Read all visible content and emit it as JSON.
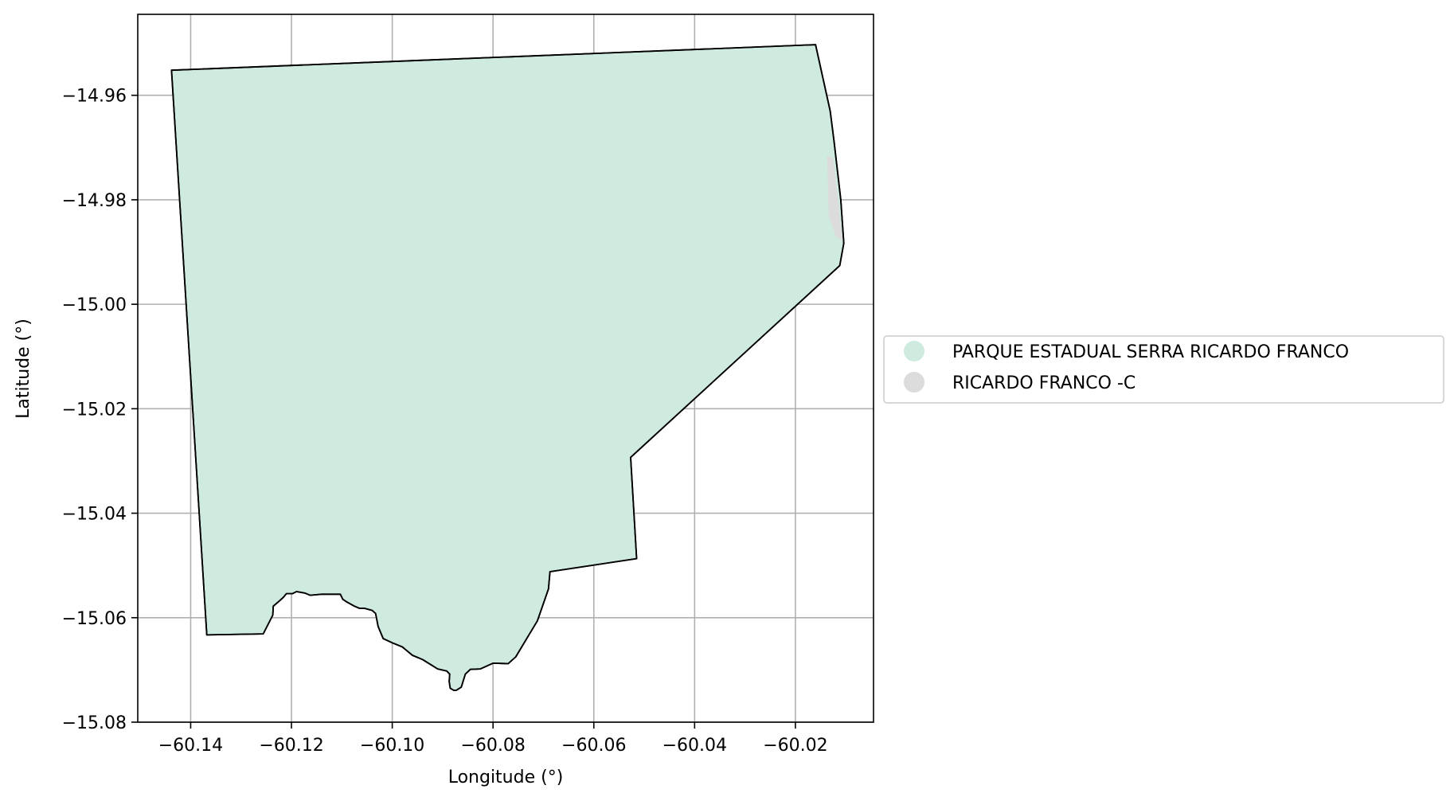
{
  "chart_data": {
    "type": "map",
    "xlabel": "Longitude (°)",
    "ylabel": "Latitude (°)",
    "xlim": [
      -60.1505,
      -60.0045
    ],
    "ylim": [
      -15.08,
      -14.9445
    ],
    "grid": true,
    "x_ticks": [
      -60.14,
      -60.12,
      -60.1,
      -60.08,
      -60.06,
      -60.04,
      -60.02
    ],
    "y_ticks": [
      -14.96,
      -14.98,
      -15.0,
      -15.02,
      -15.04,
      -15.06,
      -15.08
    ],
    "x_tick_labels": [
      "−60.14",
      "−60.12",
      "−60.10",
      "−60.08",
      "−60.06",
      "−60.04",
      "−60.02"
    ],
    "y_tick_labels": [
      "−14.96",
      "−14.98",
      "−15.00",
      "−15.02",
      "−15.04",
      "−15.06",
      "−15.08"
    ],
    "legend_position": "right",
    "series": [
      {
        "name": "PARQUE ESTADUAL SERRA RICARDO FRANCO",
        "color": "#cfeade",
        "outline": "#000000",
        "coordinates": [
          [
            -60.1438,
            -14.9552
          ],
          [
            -60.016,
            -14.9503
          ],
          [
            -60.0131,
            -14.963
          ],
          [
            -60.0123,
            -14.969
          ],
          [
            -60.011,
            -14.98
          ],
          [
            -60.0104,
            -14.9883
          ],
          [
            -60.0112,
            -14.9926
          ],
          [
            -60.0527,
            -15.0293
          ],
          [
            -60.0515,
            -15.0487
          ],
          [
            -60.0687,
            -15.0512
          ],
          [
            -60.069,
            -15.0545
          ],
          [
            -60.0712,
            -15.0606
          ],
          [
            -60.0755,
            -15.0675
          ],
          [
            -60.077,
            -15.0688
          ],
          [
            -60.08,
            -15.0687
          ],
          [
            -60.0825,
            -15.0698
          ],
          [
            -60.0845,
            -15.0699
          ],
          [
            -60.0855,
            -15.0708
          ],
          [
            -60.0863,
            -15.0733
          ],
          [
            -60.0873,
            -15.0739
          ],
          [
            -60.0878,
            -15.0739
          ],
          [
            -60.0885,
            -15.0735
          ],
          [
            -60.0887,
            -15.0722
          ],
          [
            -60.0886,
            -15.0708
          ],
          [
            -60.0892,
            -15.0702
          ],
          [
            -60.091,
            -15.0698
          ],
          [
            -60.0925,
            -15.0689
          ],
          [
            -60.094,
            -15.068
          ],
          [
            -60.096,
            -15.0672
          ],
          [
            -60.098,
            -15.0656
          ],
          [
            -60.1,
            -15.0648
          ],
          [
            -60.1018,
            -15.064
          ],
          [
            -60.1028,
            -15.0617
          ],
          [
            -60.1033,
            -15.0592
          ],
          [
            -60.104,
            -15.0586
          ],
          [
            -60.1055,
            -15.0582
          ],
          [
            -60.1065,
            -15.0582
          ],
          [
            -60.1075,
            -15.0578
          ],
          [
            -60.109,
            -15.057
          ],
          [
            -60.1098,
            -15.0565
          ],
          [
            -60.1103,
            -15.0555
          ],
          [
            -60.111,
            -15.0555
          ],
          [
            -60.112,
            -15.0555
          ],
          [
            -60.113,
            -15.0555
          ],
          [
            -60.114,
            -15.0555
          ],
          [
            -60.115,
            -15.0556
          ],
          [
            -60.1163,
            -15.0557
          ],
          [
            -60.1173,
            -15.0553
          ],
          [
            -60.119,
            -15.055
          ],
          [
            -60.1198,
            -15.0554
          ],
          [
            -60.121,
            -15.0554
          ],
          [
            -60.1216,
            -15.0561
          ],
          [
            -60.1224,
            -15.0568
          ],
          [
            -60.1236,
            -15.0578
          ],
          [
            -60.1237,
            -15.0595
          ],
          [
            -60.1256,
            -15.0631
          ],
          [
            -60.1368,
            -15.0633
          ],
          [
            -60.1438,
            -14.9552
          ]
        ]
      },
      {
        "name": "RICARDO FRANCO -C",
        "color": "#dcdcdc",
        "coordinates": [
          [
            -60.0137,
            -14.9715
          ],
          [
            -60.0125,
            -14.972
          ],
          [
            -60.0117,
            -14.9785
          ],
          [
            -60.0111,
            -14.984
          ],
          [
            -60.0105,
            -14.988
          ],
          [
            -60.012,
            -14.987
          ],
          [
            -60.0134,
            -14.983
          ],
          [
            -60.0137,
            -14.9715
          ]
        ]
      }
    ]
  }
}
